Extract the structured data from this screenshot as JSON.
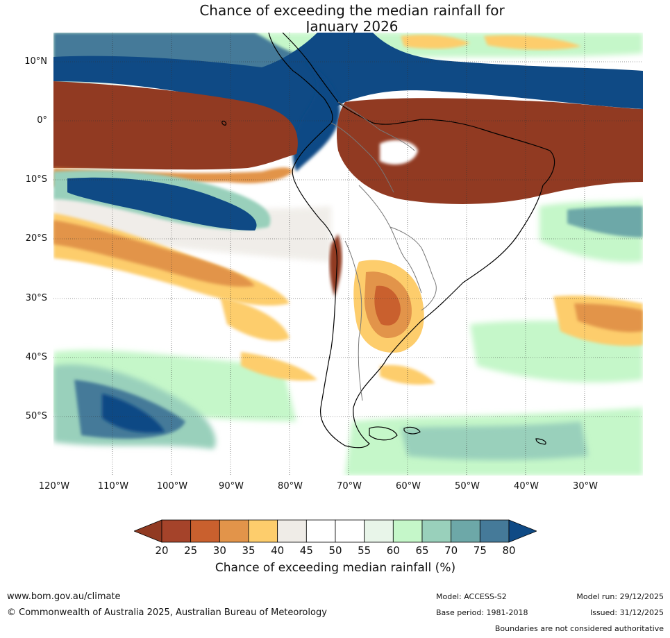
{
  "title": {
    "line1": "Chance of exceeding the median rainfall for",
    "line2": "January 2026"
  },
  "map": {
    "lat_labels": [
      "10°N",
      "0°",
      "10°S",
      "20°S",
      "30°S",
      "40°S",
      "50°S"
    ],
    "lon_labels": [
      "120°W",
      "110°W",
      "100°W",
      "90°W",
      "80°W",
      "70°W",
      "60°W",
      "50°W",
      "40°W",
      "30°W"
    ],
    "extent": {
      "lon": [
        -120,
        -20
      ],
      "lat": [
        -60,
        15
      ]
    }
  },
  "colorbar": {
    "ticks": [
      "20",
      "25",
      "30",
      "35",
      "40",
      "45",
      "50",
      "55",
      "60",
      "65",
      "70",
      "75",
      "80"
    ],
    "colors": [
      "#a5432a",
      "#c9602e",
      "#e2944a",
      "#fdcd6c",
      "#efece7",
      "#ffffff",
      "#ffffff",
      "#e8f5e9",
      "#c5f7c9",
      "#99d0bb",
      "#6da8a8",
      "#457a99"
    ],
    "under_color": "#913a22",
    "over_color": "#0f4a85",
    "label": "Chance of exceeding median rainfall (%)"
  },
  "footer": {
    "url": "www.bom.gov.au/climate",
    "copyright": "© Commonwealth of Australia 2025, Australian Bureau of Meteorology",
    "model": "Model: ACCESS-S2",
    "base_period": "Base period: 1981-2018",
    "model_run": "Model run: 29/12/2025",
    "issued": "Issued: 31/12/2025",
    "boundaries_note": "Boundaries are not considered authoritative"
  }
}
